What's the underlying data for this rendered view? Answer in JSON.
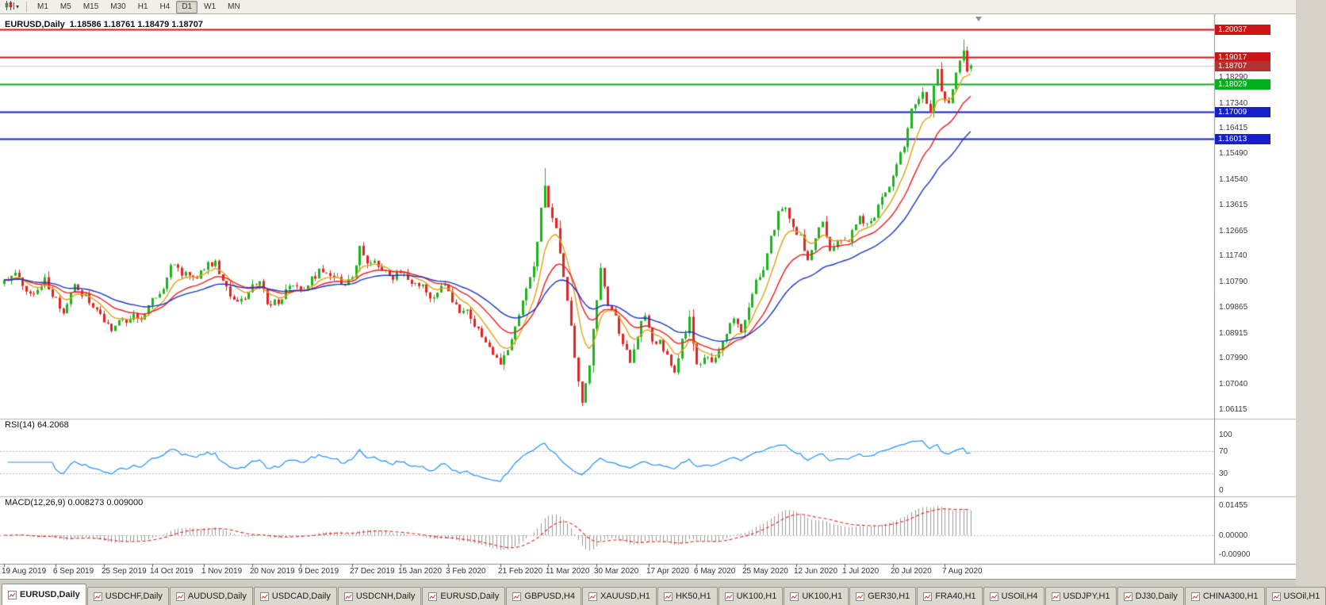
{
  "toolbar": {
    "chart_type_button": {
      "icon": "candlestick-chart-icon",
      "caret": "▾"
    },
    "timeframes": [
      {
        "label": "M1",
        "active": false
      },
      {
        "label": "M5",
        "active": false
      },
      {
        "label": "M15",
        "active": false
      },
      {
        "label": "M30",
        "active": false
      },
      {
        "label": "H1",
        "active": false
      },
      {
        "label": "H4",
        "active": false
      },
      {
        "label": "D1",
        "active": true
      },
      {
        "label": "W1",
        "active": false
      },
      {
        "label": "MN",
        "active": false
      }
    ]
  },
  "header": {
    "symbol": "EURUSD,Daily",
    "ohlc": "1.18586 1.18761 1.18479 1.18707"
  },
  "price_scale": {
    "ticks": [
      "1.18290",
      "1.17340",
      "1.16415",
      "1.15490",
      "1.14540",
      "1.13615",
      "1.12665",
      "1.11740",
      "1.10790",
      "1.09865",
      "1.08915",
      "1.07990",
      "1.07040",
      "1.06115"
    ]
  },
  "chart_data": {
    "type": "candlestick",
    "symbol": "EURUSD",
    "timeframe": "Daily",
    "y_axis": {
      "min": 1.059,
      "max": 1.2035,
      "grid": false
    },
    "x_axis": {
      "bars": 262,
      "labels": [
        {
          "i": 0,
          "label": "19 Aug 2019"
        },
        {
          "i": 14,
          "label": "6 Sep 2019"
        },
        {
          "i": 27,
          "label": "25 Sep 2019"
        },
        {
          "i": 40,
          "label": "14 Oct 2019"
        },
        {
          "i": 54,
          "label": "1 Nov 2019"
        },
        {
          "i": 67,
          "label": "20 Nov 2019"
        },
        {
          "i": 80,
          "label": "9 Dec 2019"
        },
        {
          "i": 94,
          "label": "27 Dec 2019"
        },
        {
          "i": 107,
          "label": "15 Jan 2020"
        },
        {
          "i": 120,
          "label": "3 Feb 2020"
        },
        {
          "i": 134,
          "label": "21 Feb 2020"
        },
        {
          "i": 147,
          "label": "11 Mar 2020"
        },
        {
          "i": 160,
          "label": "30 Mar 2020"
        },
        {
          "i": 174,
          "label": "17 Apr 2020"
        },
        {
          "i": 187,
          "label": "6 May 2020"
        },
        {
          "i": 200,
          "label": "25 May 2020"
        },
        {
          "i": 214,
          "label": "12 Jun 2020"
        },
        {
          "i": 227,
          "label": "1 Jul 2020"
        },
        {
          "i": 240,
          "label": "20 Jul 2020"
        },
        {
          "i": 254,
          "label": "7 Aug 2020"
        }
      ]
    },
    "last_ohlc": {
      "open": 1.18586,
      "high": 1.18761,
      "low": 1.18479,
      "close": 1.18707
    },
    "price_path": [
      [
        0,
        1.1085
      ],
      [
        2,
        1.111
      ],
      [
        4,
        1.112
      ],
      [
        6,
        1.1065
      ],
      [
        8,
        1.104
      ],
      [
        11,
        1.1095
      ],
      [
        14,
        1.103
      ],
      [
        16,
        1.099
      ],
      [
        19,
        1.107
      ],
      [
        22,
        1.104
      ],
      [
        25,
        1.099
      ],
      [
        27,
        1.0955
      ],
      [
        29,
        1.0905
      ],
      [
        31,
        1.096
      ],
      [
        33,
        1.093
      ],
      [
        35,
        1.0985
      ],
      [
        37,
        1.095
      ],
      [
        40,
        1.103
      ],
      [
        43,
        1.1075
      ],
      [
        45,
        1.115
      ],
      [
        48,
        1.113
      ],
      [
        51,
        1.1105
      ],
      [
        54,
        1.115
      ],
      [
        57,
        1.1165
      ],
      [
        60,
        1.1075
      ],
      [
        63,
        1.101
      ],
      [
        66,
        1.106
      ],
      [
        69,
        1.11
      ],
      [
        71,
        1.101
      ],
      [
        74,
        1.1025
      ],
      [
        77,
        1.108
      ],
      [
        80,
        1.1055
      ],
      [
        83,
        1.111
      ],
      [
        86,
        1.1135
      ],
      [
        89,
        1.1115
      ],
      [
        92,
        1.1075
      ],
      [
        94,
        1.1115
      ],
      [
        96,
        1.1215
      ],
      [
        98,
        1.1175
      ],
      [
        101,
        1.116
      ],
      [
        104,
        1.1105
      ],
      [
        107,
        1.1135
      ],
      [
        110,
        1.1095
      ],
      [
        113,
        1.1085
      ],
      [
        116,
        1.1025
      ],
      [
        119,
        1.1085
      ],
      [
        122,
        1.1
      ],
      [
        125,
        1.098
      ],
      [
        128,
        1.0915
      ],
      [
        131,
        1.0845
      ],
      [
        134,
        1.079
      ],
      [
        136,
        1.0845
      ],
      [
        139,
        1.0985
      ],
      [
        141,
        1.108
      ],
      [
        143,
        1.1135
      ],
      [
        145,
        1.136
      ],
      [
        146,
        1.145
      ],
      [
        147,
        1.1365
      ],
      [
        149,
        1.128
      ],
      [
        151,
        1.111
      ],
      [
        153,
        1.092
      ],
      [
        154,
        1.081
      ],
      [
        156,
        1.0655
      ],
      [
        158,
        1.079
      ],
      [
        160,
        1.104
      ],
      [
        161,
        1.114
      ],
      [
        163,
        1.1
      ],
      [
        165,
        1.0955
      ],
      [
        167,
        1.088
      ],
      [
        169,
        1.08
      ],
      [
        171,
        1.089
      ],
      [
        173,
        1.098
      ],
      [
        175,
        1.0865
      ],
      [
        177,
        1.0875
      ],
      [
        179,
        1.082
      ],
      [
        181,
        1.0775
      ],
      [
        183,
        1.0875
      ],
      [
        185,
        1.0955
      ],
      [
        187,
        1.079
      ],
      [
        189,
        1.0815
      ],
      [
        191,
        1.0805
      ],
      [
        193,
        1.0845
      ],
      [
        195,
        1.0915
      ],
      [
        197,
        1.095
      ],
      [
        199,
        1.09
      ],
      [
        201,
        1.0985
      ],
      [
        203,
        1.11
      ],
      [
        205,
        1.1135
      ],
      [
        207,
        1.125
      ],
      [
        209,
        1.134
      ],
      [
        211,
        1.1375
      ],
      [
        213,
        1.13
      ],
      [
        215,
        1.1255
      ],
      [
        217,
        1.118
      ],
      [
        219,
        1.1255
      ],
      [
        221,
        1.131
      ],
      [
        223,
        1.122
      ],
      [
        225,
        1.1245
      ],
      [
        227,
        1.1235
      ],
      [
        229,
        1.127
      ],
      [
        231,
        1.133
      ],
      [
        233,
        1.13
      ],
      [
        235,
        1.134
      ],
      [
        237,
        1.14
      ],
      [
        239,
        1.143
      ],
      [
        241,
        1.1525
      ],
      [
        243,
        1.159
      ],
      [
        245,
        1.172
      ],
      [
        247,
        1.175
      ],
      [
        248,
        1.178
      ],
      [
        250,
        1.172
      ],
      [
        252,
        1.1875
      ],
      [
        253,
        1.179
      ],
      [
        255,
        1.174
      ],
      [
        257,
        1.187
      ],
      [
        259,
        1.193
      ],
      [
        260,
        1.1859
      ],
      [
        261,
        1.18707
      ]
    ],
    "wick_overrides": [
      {
        "i": 146,
        "high": 1.1495
      },
      {
        "i": 156,
        "low": 1.0636
      },
      {
        "i": 259,
        "high": 1.1966
      }
    ],
    "candle_colors": {
      "up": "#1cb41c",
      "down": "#e62222"
    },
    "moving_averages": [
      {
        "name": "fast-ma",
        "period": 8,
        "color": "#e2a117"
      },
      {
        "name": "mid-ma",
        "period": 18,
        "color": "#ee1c1c"
      },
      {
        "name": "slow-ma",
        "period": 34,
        "color": "#1a35c3"
      }
    ],
    "horizontal_lines": [
      {
        "label": "1.20037",
        "price": 1.20037,
        "color": "#cc1414"
      },
      {
        "label": "1.19017",
        "price": 1.19017,
        "color": "#cc1414"
      },
      {
        "label": "1.18029",
        "price": 1.18029,
        "color": "#00b21a"
      },
      {
        "label": "1.17009",
        "price": 1.17009,
        "color": "#1520c8"
      },
      {
        "label": "1.16013",
        "price": 1.16013,
        "color": "#1520c8"
      }
    ],
    "current_price": {
      "label": "1.18707",
      "price": 1.18707,
      "line_color": "#c6c6c6",
      "box_color": "#b03434"
    },
    "rsi": {
      "label": "RSI(14) 64.2068",
      "period": 14,
      "value": 64.2068,
      "levels": [
        70,
        30
      ],
      "scale_ticks": [
        "100",
        "70",
        "30",
        "0"
      ],
      "color": "#1e90ff"
    },
    "macd": {
      "label": "MACD(12,26,9) 0.008273 0.009000",
      "fast": 12,
      "slow": 26,
      "signal": 9,
      "value": 0.008273,
      "signal_value": 0.009,
      "scale_ticks": [
        "0.01455",
        "0.00000",
        "-0.00900"
      ],
      "histogram_color": "#9a9a9a",
      "signal_color": "#ee1c1c"
    }
  },
  "tabbar": {
    "tabs": [
      {
        "label": "EURUSD,Daily",
        "active": true
      },
      {
        "label": "USDCHF,Daily",
        "active": false
      },
      {
        "label": "AUDUSD,Daily",
        "active": false
      },
      {
        "label": "USDCAD,Daily",
        "active": false
      },
      {
        "label": "USDCNH,Daily",
        "active": false
      },
      {
        "label": "EURUSD,Daily",
        "active": false
      },
      {
        "label": "GBPUSD,H4",
        "active": false
      },
      {
        "label": "XAUUSD,H1",
        "active": false
      },
      {
        "label": "HK50,H1",
        "active": false
      },
      {
        "label": "UK100,H1",
        "active": false
      },
      {
        "label": "UK100,H1",
        "active": false
      },
      {
        "label": "GER30,H1",
        "active": false
      },
      {
        "label": "FRA40,H1",
        "active": false
      },
      {
        "label": "USOil,H4",
        "active": false
      },
      {
        "label": "USDJPY,H1",
        "active": false
      },
      {
        "label": "DJ30,Daily",
        "active": false
      },
      {
        "label": "CHINA300,H1",
        "active": false
      },
      {
        "label": "USOil,H1",
        "active": false
      }
    ]
  }
}
